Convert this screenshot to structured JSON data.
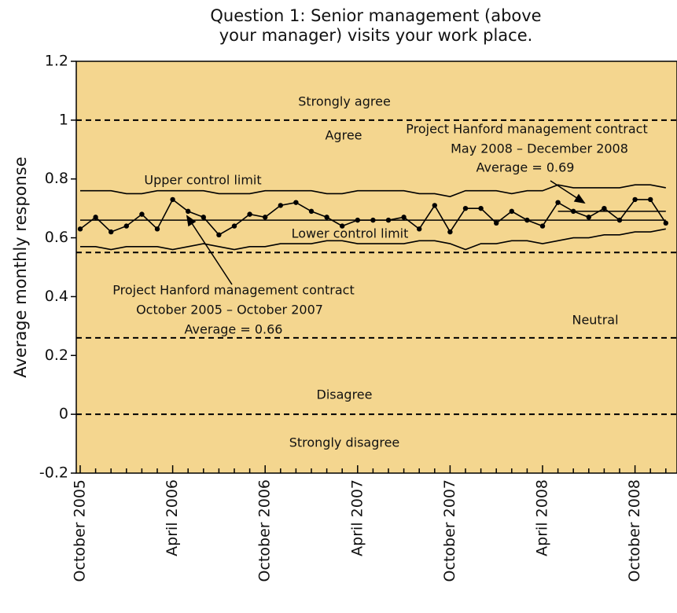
{
  "chart_data": {
    "type": "line",
    "title_lines": [
      "Question 1: Senior management (above",
      "your manager) visits your work place."
    ],
    "y_label": "Average monthly response",
    "categories": [
      "October 2005",
      null,
      null,
      null,
      null,
      null,
      "April 2006",
      null,
      null,
      null,
      null,
      null,
      "October 2006",
      null,
      null,
      null,
      null,
      null,
      "April 2007",
      null,
      null,
      null,
      null,
      null,
      "October 2007",
      null,
      null,
      null,
      null,
      null,
      "April 2008",
      null,
      null,
      null,
      null,
      null,
      "October 2008",
      null,
      null
    ],
    "ylim": [
      -0.2,
      1.2
    ],
    "yticks": [
      -0.2,
      0,
      0.2,
      0.4,
      0.6,
      0.8,
      1,
      1.2
    ],
    "series": [
      {
        "name": "Upper control limit",
        "color": "#000000",
        "values": [
          0.76,
          0.76,
          0.76,
          0.75,
          0.75,
          0.76,
          0.76,
          0.76,
          0.76,
          0.75,
          0.75,
          0.75,
          0.76,
          0.76,
          0.76,
          0.76,
          0.75,
          0.75,
          0.76,
          0.76,
          0.76,
          0.76,
          0.75,
          0.75,
          0.74,
          0.76,
          0.76,
          0.76,
          0.75,
          0.76,
          0.76,
          0.78,
          0.77,
          0.77,
          0.77,
          0.77,
          0.78,
          0.78,
          0.77
        ]
      },
      {
        "name": "Lower control limit",
        "color": "#000000",
        "values": [
          0.57,
          0.57,
          0.56,
          0.57,
          0.57,
          0.57,
          0.56,
          0.57,
          0.58,
          0.57,
          0.56,
          0.57,
          0.57,
          0.58,
          0.58,
          0.58,
          0.59,
          0.59,
          0.58,
          0.58,
          0.58,
          0.58,
          0.59,
          0.59,
          0.58,
          0.56,
          0.58,
          0.58,
          0.59,
          0.59,
          0.58,
          0.59,
          0.6,
          0.6,
          0.61,
          0.61,
          0.62,
          0.62,
          0.63
        ]
      },
      {
        "color": "#000000",
        "markers": true,
        "values": [
          0.63,
          0.67,
          0.62,
          0.64,
          0.68,
          0.63,
          0.73,
          0.69,
          0.67,
          0.61,
          0.64,
          0.68,
          0.67,
          0.71,
          0.72,
          0.69,
          0.67,
          0.64,
          0.66,
          0.66,
          0.66,
          0.67,
          0.63,
          0.71,
          0.62,
          0.7,
          0.7,
          0.65,
          0.69,
          0.66,
          0.64,
          0.72,
          0.69,
          0.67,
          0.7,
          0.66,
          0.73,
          0.73,
          0.65
        ]
      },
      {
        "color": "#000000",
        "values": [
          0.66,
          0.66,
          0.66,
          0.66,
          0.66,
          0.66,
          0.66,
          0.66,
          0.66,
          0.66,
          0.66,
          0.66,
          0.66,
          0.66,
          0.66,
          0.66,
          0.66,
          0.66,
          0.66,
          0.66,
          0.66,
          0.66,
          0.66,
          0.66,
          0.66,
          0.66,
          0.66,
          0.66,
          0.66,
          0.66,
          0.66,
          0.66,
          0.66,
          0.66,
          0.66,
          0.66,
          0.66,
          0.66,
          0.66
        ]
      },
      {
        "color": "#000000",
        "values": [
          null,
          null,
          null,
          null,
          null,
          null,
          null,
          null,
          null,
          null,
          null,
          null,
          null,
          null,
          null,
          null,
          null,
          null,
          null,
          null,
          null,
          null,
          null,
          null,
          null,
          null,
          null,
          null,
          null,
          null,
          null,
          0.69,
          0.69,
          0.69,
          0.69,
          0.69,
          0.69,
          0.69,
          0.69
        ]
      }
    ],
    "thresholds": [
      1,
      0.55,
      0.26,
      0
    ],
    "zones": [
      "Strongly agree",
      "Agree",
      "Neutral",
      "Disagree",
      "Strongly disagree"
    ],
    "annotations": [
      {
        "lines": [
          "Project Hanford management contract",
          "October 2005 – October 2007",
          "Average = 0.66"
        ]
      },
      {
        "lines": [
          "Project Hanford management contract",
          "May 2008 – December 2008",
          "Average = 0.69"
        ]
      }
    ],
    "background": "#f4d68f",
    "grid": false
  }
}
